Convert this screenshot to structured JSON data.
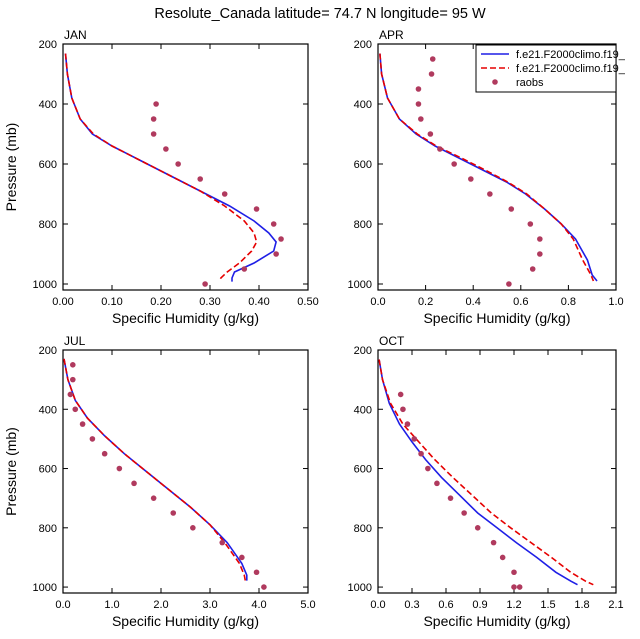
{
  "title": "Resolute_Canada  latitude= 74.7 N longitude= 95 W",
  "legend": {
    "entries": [
      {
        "label": "f.e21.F2000climo.f19_",
        "style": "solid",
        "color": "#1f1fe6"
      },
      {
        "label": "f.e21.F2000climo.f19_",
        "style": "dashed",
        "color": "#e60000"
      },
      {
        "label": "raobs",
        "style": "dots",
        "color": "#b03a5e"
      }
    ]
  },
  "chart_data": [
    {
      "type": "line",
      "name": "JAN",
      "title": "JAN",
      "xlabel": "Specific Humidity (g/kg)",
      "ylabel": "Pressure (mb)",
      "xlim": [
        0,
        0.5
      ],
      "ylim": [
        1020,
        200
      ],
      "xticks": [
        0,
        0.1,
        0.2,
        0.3,
        0.4,
        0.5
      ],
      "xtick_labels": [
        "0.00",
        "0.10",
        "0.20",
        "0.30",
        "0.40",
        "0.50"
      ],
      "yticks": [
        200,
        400,
        600,
        800,
        1000
      ],
      "ytick_labels": [
        "200",
        "400",
        "600",
        "800",
        "1000"
      ],
      "series": [
        {
          "name": "model1",
          "style": "solid",
          "color": "#1f1fe6",
          "x": [
            0.005,
            0.009,
            0.018,
            0.035,
            0.06,
            0.1,
            0.16,
            0.22,
            0.28,
            0.34,
            0.39,
            0.42,
            0.435,
            0.43,
            0.39,
            0.35,
            0.345,
            0.345
          ],
          "y": [
            232,
            300,
            380,
            450,
            500,
            540,
            590,
            640,
            690,
            740,
            790,
            830,
            860,
            890,
            930,
            960,
            980,
            992
          ]
        },
        {
          "name": "model2",
          "style": "dashed",
          "color": "#e60000",
          "x": [
            0.005,
            0.009,
            0.018,
            0.035,
            0.062,
            0.1,
            0.16,
            0.22,
            0.28,
            0.33,
            0.37,
            0.39,
            0.395,
            0.385,
            0.36,
            0.335,
            0.322,
            0.32
          ],
          "y": [
            232,
            300,
            380,
            450,
            500,
            540,
            590,
            640,
            690,
            740,
            790,
            830,
            860,
            890,
            930,
            960,
            980,
            992
          ]
        },
        {
          "name": "raobs",
          "style": "dots",
          "color": "#b03a5e",
          "x": [
            0.19,
            0.185,
            0.185,
            0.21,
            0.235,
            0.28,
            0.33,
            0.395,
            0.43,
            0.445,
            0.435,
            0.37,
            0.29
          ],
          "y": [
            400,
            450,
            500,
            550,
            600,
            650,
            700,
            750,
            800,
            850,
            900,
            950,
            1000
          ]
        }
      ]
    },
    {
      "type": "line",
      "name": "APR",
      "title": "APR",
      "xlabel": "Specific Humidity (g/kg)",
      "ylabel": "Pressure (mb)",
      "xlim": [
        0,
        1.0
      ],
      "ylim": [
        1020,
        200
      ],
      "xticks": [
        0,
        0.2,
        0.4,
        0.6,
        0.8,
        1.0
      ],
      "xtick_labels": [
        "0.0",
        "0.2",
        "0.4",
        "0.6",
        "0.8",
        "1.0"
      ],
      "yticks": [
        200,
        400,
        600,
        800,
        1000
      ],
      "ytick_labels": [
        "200",
        "400",
        "600",
        "800",
        "1000"
      ],
      "series": [
        {
          "name": "model1",
          "style": "solid",
          "color": "#1f1fe6",
          "x": [
            0.008,
            0.015,
            0.04,
            0.09,
            0.16,
            0.24,
            0.34,
            0.44,
            0.54,
            0.62,
            0.7,
            0.77,
            0.83,
            0.88,
            0.9,
            0.92
          ],
          "y": [
            232,
            300,
            380,
            450,
            500,
            540,
            580,
            620,
            660,
            700,
            750,
            800,
            850,
            920,
            970,
            990
          ]
        },
        {
          "name": "model2",
          "style": "dashed",
          "color": "#e60000",
          "x": [
            0.008,
            0.015,
            0.04,
            0.09,
            0.165,
            0.245,
            0.35,
            0.45,
            0.545,
            0.625,
            0.7,
            0.77,
            0.82,
            0.86,
            0.895,
            0.905
          ],
          "y": [
            232,
            300,
            380,
            450,
            500,
            540,
            580,
            620,
            660,
            700,
            750,
            800,
            850,
            920,
            970,
            990
          ]
        },
        {
          "name": "raobs",
          "style": "dots",
          "color": "#b03a5e",
          "x": [
            0.23,
            0.225,
            0.17,
            0.17,
            0.18,
            0.22,
            0.26,
            0.32,
            0.39,
            0.47,
            0.56,
            0.64,
            0.68,
            0.68,
            0.65,
            0.55
          ],
          "y": [
            250,
            300,
            350,
            400,
            450,
            500,
            550,
            600,
            650,
            700,
            750,
            800,
            850,
            900,
            950,
            1000
          ]
        }
      ]
    },
    {
      "type": "line",
      "name": "JUL",
      "title": "JUL",
      "xlabel": "Specific Humidity (g/kg)",
      "ylabel": "Pressure (mb)",
      "xlim": [
        0,
        5.0
      ],
      "ylim": [
        1020,
        200
      ],
      "xticks": [
        0,
        1,
        2,
        3,
        4,
        5
      ],
      "xtick_labels": [
        "0.0",
        "1.0",
        "2.0",
        "3.0",
        "4.0",
        "5.0"
      ],
      "yticks": [
        200,
        400,
        600,
        800,
        1000
      ],
      "ytick_labels": [
        "200",
        "400",
        "600",
        "800",
        "1000"
      ],
      "series": [
        {
          "name": "model1",
          "style": "solid",
          "color": "#1f1fe6",
          "x": [
            0.02,
            0.1,
            0.25,
            0.5,
            0.85,
            1.25,
            1.7,
            2.15,
            2.6,
            3.0,
            3.35,
            3.65,
            3.75,
            3.75
          ],
          "y": [
            230,
            300,
            370,
            430,
            490,
            550,
            610,
            670,
            730,
            790,
            850,
            920,
            960,
            978
          ]
        },
        {
          "name": "model2",
          "style": "dashed",
          "color": "#e60000",
          "x": [
            0.02,
            0.1,
            0.25,
            0.5,
            0.85,
            1.25,
            1.7,
            2.15,
            2.6,
            3.0,
            3.3,
            3.6,
            3.7,
            3.72
          ],
          "y": [
            230,
            300,
            370,
            430,
            490,
            550,
            610,
            670,
            730,
            790,
            850,
            920,
            960,
            978
          ]
        },
        {
          "name": "raobs",
          "style": "dots",
          "color": "#b03a5e",
          "x": [
            0.2,
            0.2,
            0.15,
            0.25,
            0.4,
            0.6,
            0.85,
            1.15,
            1.45,
            1.85,
            2.25,
            2.65,
            3.25,
            3.65,
            3.95,
            4.1
          ],
          "y": [
            250,
            300,
            350,
            400,
            450,
            500,
            550,
            600,
            650,
            700,
            750,
            800,
            850,
            900,
            950,
            1000
          ]
        }
      ]
    },
    {
      "type": "line",
      "name": "OCT",
      "title": "OCT",
      "xlabel": "Specific Humidity (g/kg)",
      "ylabel": "Pressure (mb)",
      "xlim": [
        0,
        2.1
      ],
      "ylim": [
        1020,
        200
      ],
      "xticks": [
        0,
        0.3,
        0.6,
        0.9,
        1.2,
        1.5,
        1.8,
        2.1
      ],
      "xtick_labels": [
        "0.0",
        "0.3",
        "0.6",
        "0.9",
        "1.2",
        "1.5",
        "1.8",
        "2.1"
      ],
      "yticks": [
        200,
        400,
        600,
        800,
        1000
      ],
      "ytick_labels": [
        "200",
        "400",
        "600",
        "800",
        "1000"
      ],
      "series": [
        {
          "name": "model1",
          "style": "solid",
          "color": "#1f1fe6",
          "x": [
            0.01,
            0.04,
            0.1,
            0.19,
            0.3,
            0.42,
            0.56,
            0.72,
            0.88,
            1.05,
            1.22,
            1.4,
            1.57,
            1.7,
            1.76
          ],
          "y": [
            232,
            300,
            380,
            450,
            510,
            570,
            630,
            690,
            750,
            800,
            850,
            900,
            950,
            980,
            992
          ]
        },
        {
          "name": "model2",
          "style": "dashed",
          "color": "#e60000",
          "x": [
            0.01,
            0.04,
            0.11,
            0.22,
            0.36,
            0.5,
            0.66,
            0.83,
            1.0,
            1.17,
            1.35,
            1.53,
            1.7,
            1.83,
            1.9
          ],
          "y": [
            232,
            300,
            380,
            450,
            510,
            570,
            630,
            690,
            750,
            800,
            850,
            900,
            950,
            980,
            992
          ]
        },
        {
          "name": "raobs",
          "style": "dots",
          "color": "#b03a5e",
          "x": [
            0.2,
            0.22,
            0.26,
            0.32,
            0.38,
            0.44,
            0.52,
            0.64,
            0.76,
            0.88,
            1.02,
            1.1,
            1.2,
            1.25,
            1.26,
            1.2
          ],
          "y": [
            350,
            400,
            450,
            500,
            550,
            600,
            650,
            700,
            750,
            800,
            850,
            900,
            950,
            1000,
            1050,
            1000
          ]
        }
      ]
    }
  ]
}
